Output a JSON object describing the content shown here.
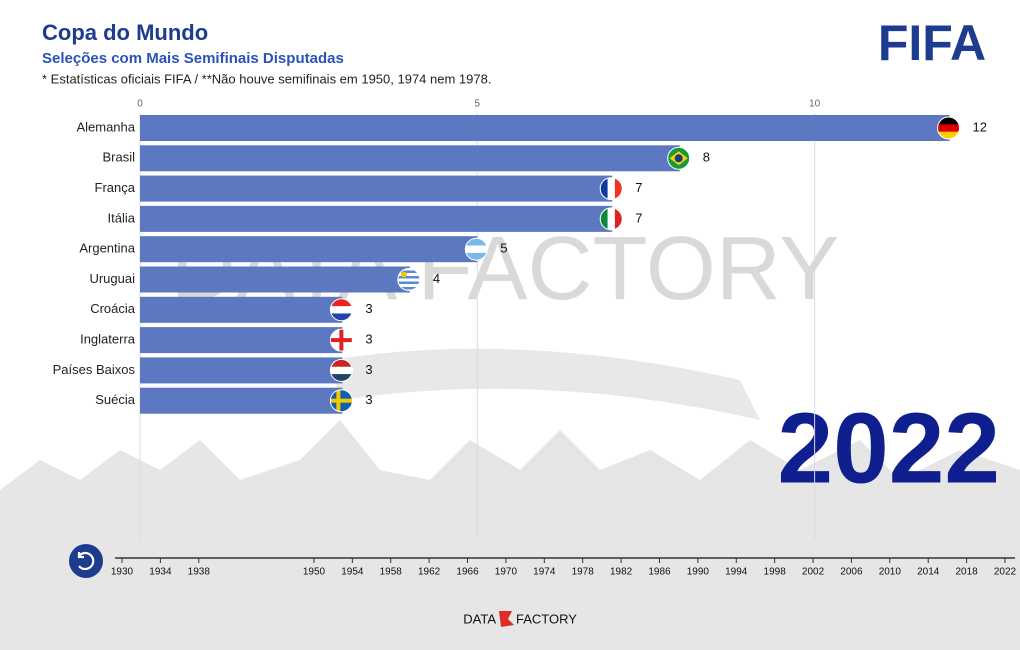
{
  "chart_data": {
    "type": "bar",
    "orientation": "horizontal",
    "title": "Copa do Mundo",
    "subtitle": "Seleções com Mais Semifinais Disputadas",
    "note": "* Estatísticas oficiais FIFA / **Não houve semifinais em 1950, 1974 nem 1978.",
    "categories": [
      "Alemanha",
      "Brasil",
      "França",
      "Itália",
      "Argentina",
      "Uruguai",
      "Croácia",
      "Inglaterra",
      "Países Baixos",
      "Suécia"
    ],
    "values": [
      12,
      8,
      7,
      7,
      5,
      4,
      3,
      3,
      3,
      3
    ],
    "color": "#5b78c0",
    "xlim": [
      0,
      13
    ],
    "xticks": [
      0,
      5,
      10
    ],
    "grid": true,
    "year": 2022,
    "timeline": [
      1930,
      1934,
      1938,
      1950,
      1954,
      1958,
      1962,
      1966,
      1970,
      1974,
      1978,
      1982,
      1986,
      1990,
      1994,
      1998,
      2002,
      2006,
      2010,
      2014,
      2018,
      2022
    ],
    "logo": "FIFA",
    "watermark": "DATA FACTORY",
    "footer_left": "DATA",
    "footer_right": "FACTORY"
  }
}
